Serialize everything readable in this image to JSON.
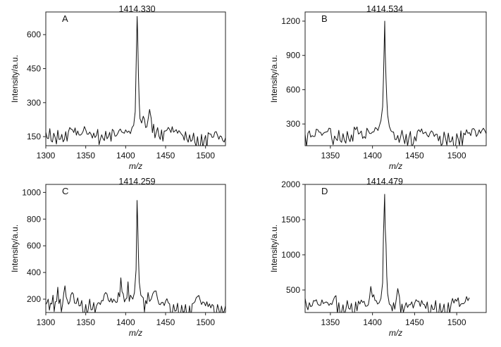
{
  "chart_data": [
    {
      "type": "line",
      "panel": "A",
      "peak_label": "1414.330",
      "xlabel": "m/z",
      "ylabel": "Intensity/a.u.",
      "xlim": [
        1300,
        1525
      ],
      "ylim": [
        110,
        700
      ],
      "xticks": [
        1300,
        1350,
        1400,
        1450,
        1500
      ],
      "yticks": [
        150,
        300,
        450,
        600
      ],
      "grid": false,
      "series": [
        {
          "x": [
            1300,
            1305,
            1310,
            1315,
            1320,
            1325,
            1330,
            1335,
            1340,
            1345,
            1350,
            1355,
            1360,
            1365,
            1370,
            1375,
            1380,
            1385,
            1390,
            1395,
            1400,
            1404,
            1408,
            1410,
            1412,
            1413,
            1414.33,
            1415,
            1416,
            1417,
            1418,
            1420,
            1422,
            1425,
            1428,
            1430,
            1432,
            1435,
            1440,
            1445,
            1450,
            1455,
            1460,
            1465,
            1470,
            1475,
            1480,
            1485,
            1490,
            1495,
            1500,
            1505,
            1510,
            1515,
            1520,
            1525
          ],
          "y": [
            170,
            185,
            165,
            178,
            160,
            172,
            190,
            168,
            175,
            162,
            180,
            170,
            166,
            182,
            158,
            174,
            169,
            176,
            163,
            171,
            180,
            175,
            190,
            200,
            260,
            450,
            680,
            610,
            420,
            300,
            230,
            210,
            240,
            190,
            225,
            270,
            230,
            205,
            190,
            180,
            175,
            182,
            170,
            165,
            160,
            172,
            158,
            166,
            150,
            160,
            155,
            162,
            148,
            156,
            150,
            145
          ]
        }
      ]
    },
    {
      "type": "line",
      "panel": "B",
      "peak_label": "1414.534",
      "xlabel": "m/z",
      "ylabel": "Intensity/a.u.",
      "xlim": [
        1320,
        1535
      ],
      "ylim": [
        110,
        1280
      ],
      "xticks": [
        1350,
        1400,
        1450,
        1500
      ],
      "yticks": [
        300,
        600,
        900,
        1200
      ],
      "grid": false,
      "series": [
        {
          "x": [
            1320,
            1325,
            1330,
            1335,
            1340,
            1345,
            1350,
            1355,
            1360,
            1365,
            1370,
            1375,
            1380,
            1385,
            1390,
            1395,
            1400,
            1405,
            1408,
            1410,
            1412,
            1413,
            1414.534,
            1415,
            1416,
            1417,
            1418,
            1420,
            1422,
            1425,
            1430,
            1435,
            1440,
            1445,
            1450,
            1455,
            1460,
            1465,
            1470,
            1475,
            1480,
            1485,
            1490,
            1495,
            1500,
            1505,
            1510,
            1515,
            1520,
            1525,
            1530,
            1535
          ],
          "y": [
            210,
            240,
            190,
            250,
            200,
            230,
            260,
            195,
            245,
            215,
            235,
            205,
            250,
            220,
            190,
            240,
            230,
            260,
            280,
            330,
            450,
            700,
            1200,
            950,
            700,
            520,
            380,
            280,
            240,
            230,
            200,
            245,
            210,
            235,
            190,
            250,
            215,
            200,
            240,
            210,
            195,
            230,
            220,
            190,
            215,
            240,
            205,
            225,
            260,
            210,
            245,
            215
          ]
        }
      ]
    },
    {
      "type": "line",
      "panel": "C",
      "peak_label": "1414.259",
      "xlabel": "m/z",
      "ylabel": "Intensity/a.u.",
      "xlim": [
        1300,
        1525
      ],
      "ylim": [
        100,
        1060
      ],
      "xticks": [
        1300,
        1350,
        1400,
        1450,
        1500
      ],
      "yticks": [
        200,
        400,
        600,
        800,
        1000
      ],
      "grid": false,
      "series": [
        {
          "x": [
            1300,
            1303,
            1306,
            1309,
            1312,
            1315,
            1318,
            1321,
            1324,
            1327,
            1330,
            1333,
            1336,
            1340,
            1345,
            1350,
            1355,
            1360,
            1365,
            1370,
            1375,
            1380,
            1385,
            1388,
            1391,
            1394,
            1397,
            1400,
            1403,
            1406,
            1409,
            1411,
            1413,
            1414.259,
            1415,
            1416,
            1417,
            1419,
            1422,
            1425,
            1428,
            1432,
            1436,
            1440,
            1445,
            1450,
            1455,
            1460,
            1465,
            1470,
            1475,
            1480,
            1485,
            1490,
            1495,
            1500,
            1505,
            1510,
            1515,
            1520,
            1525
          ],
          "y": [
            160,
            200,
            170,
            230,
            180,
            290,
            200,
            160,
            300,
            190,
            180,
            250,
            170,
            210,
            190,
            160,
            200,
            175,
            170,
            190,
            250,
            180,
            200,
            175,
            250,
            360,
            240,
            200,
            330,
            230,
            200,
            250,
            420,
            940,
            800,
            520,
            330,
            230,
            210,
            190,
            250,
            200,
            260,
            200,
            175,
            185,
            165,
            160,
            170,
            155,
            160,
            150,
            170,
            220,
            160,
            150,
            165,
            150,
            160,
            148,
            150
          ]
        }
      ]
    },
    {
      "type": "line",
      "panel": "D",
      "peak_label": "1414.479",
      "xlabel": "m/z",
      "ylabel": "Intensity/a.u.",
      "xlim": [
        1320,
        1535
      ],
      "ylim": [
        180,
        2000
      ],
      "xticks": [
        1350,
        1400,
        1450,
        1500
      ],
      "yticks": [
        500,
        1000,
        1500,
        2000
      ],
      "grid": false,
      "series": [
        {
          "x": [
            1320,
            1325,
            1330,
            1335,
            1340,
            1345,
            1350,
            1355,
            1360,
            1365,
            1370,
            1375,
            1380,
            1385,
            1390,
            1395,
            1398,
            1400,
            1403,
            1406,
            1408,
            1410,
            1412,
            1413,
            1414.479,
            1415,
            1416,
            1417,
            1418,
            1420,
            1422,
            1425,
            1428,
            1430,
            1432,
            1435,
            1440,
            1445,
            1450,
            1455,
            1460,
            1465,
            1470,
            1475,
            1480,
            1485,
            1490,
            1495,
            1500,
            1505,
            1510,
            1515
          ],
          "y": [
            380,
            320,
            350,
            300,
            360,
            330,
            310,
            400,
            320,
            290,
            350,
            310,
            330,
            300,
            340,
            290,
            550,
            400,
            350,
            300,
            320,
            380,
            600,
            1300,
            1860,
            1400,
            1150,
            700,
            450,
            300,
            280,
            320,
            350,
            520,
            400,
            300,
            320,
            290,
            310,
            340,
            300,
            330,
            290,
            350,
            310,
            300,
            320,
            380,
            340,
            300,
            330,
            390
          ]
        }
      ]
    }
  ]
}
